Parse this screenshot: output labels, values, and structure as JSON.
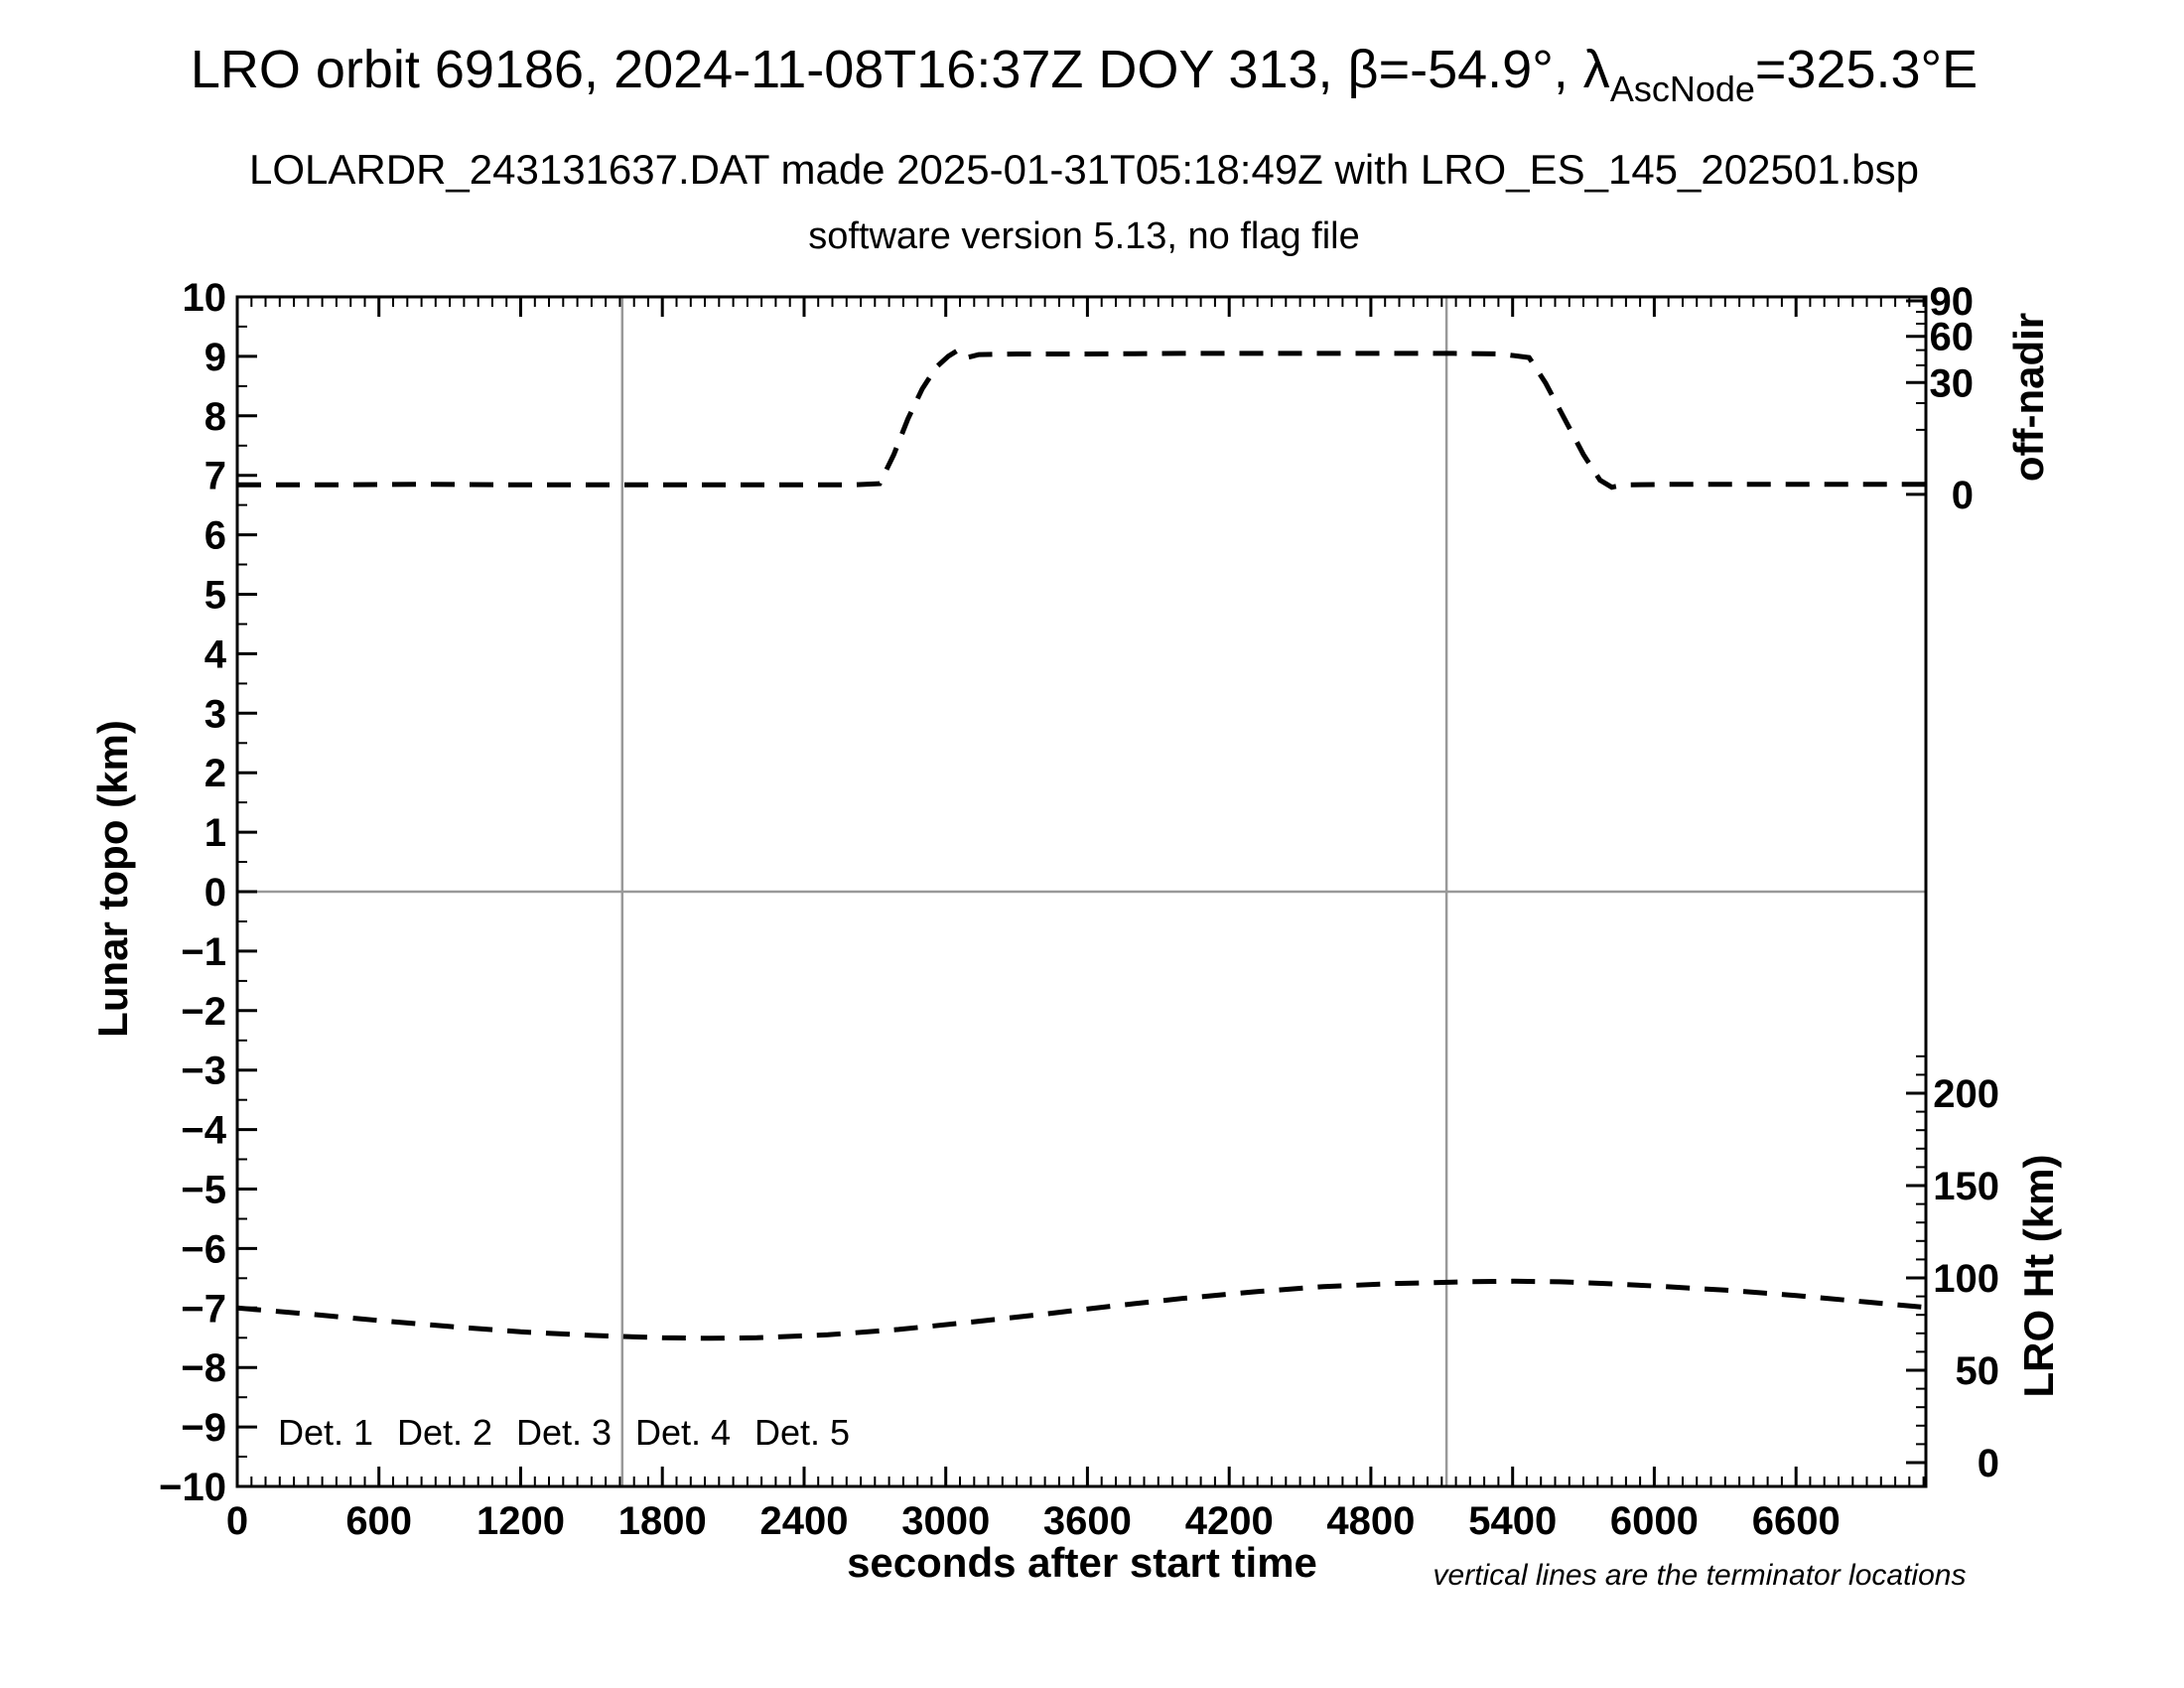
{
  "title": {
    "part1": "LRO orbit 69186, 2024-11-08T16:37Z DOY 313, β=-54.9°, λ",
    "sub": "AscNode",
    "part2": "=325.3°E"
  },
  "subtitle_file": "LOLARDR_243131637.DAT made 2025-01-31T05:18:49Z with LRO_ES_145_202501.bsp",
  "subtitle_version": "software version 5.13, no flag file",
  "footnote": "vertical lines are the terminator locations",
  "chart_data": {
    "type": "line",
    "title": "LRO orbit 69186, 2024-11-08T16:37Z DOY 313, β=-54.9°, λAscNode=325.3°E",
    "xlabel": "seconds after start time",
    "ylabel_left": "Lunar topo (km)",
    "ylabel_right_top": "off-nadir",
    "ylabel_right_bottom": "LRO Ht (km)",
    "grid": false,
    "x_axis": {
      "min": 0,
      "max": 7150,
      "major_step": 600,
      "minor_step": 60,
      "last_label": 6600,
      "tick_labels": [
        "0",
        "600",
        "1200",
        "1800",
        "2400",
        "3000",
        "3600",
        "4200",
        "4800",
        "5400",
        "6000",
        "6600"
      ]
    },
    "topo_axis": {
      "min": -10,
      "max": 10,
      "major_step": 1,
      "minor_step": 0.5,
      "tick_labels": [
        10,
        9,
        8,
        7,
        6,
        5,
        4,
        3,
        2,
        1,
        0,
        -1,
        -2,
        -3,
        -4,
        -5,
        -6,
        -7,
        -8,
        -9,
        -10
      ]
    },
    "off_nadir_axis": {
      "unit": "deg",
      "scale": "sqrt",
      "labeled_ticks": [
        90,
        60,
        30,
        0
      ],
      "minor_ticks": [
        10,
        20,
        40,
        50,
        70,
        80
      ],
      "topo_at_0deg": 6.68,
      "topo_per_sqrt_deg": 0.343
    },
    "lro_ht_axis": {
      "unit": "km",
      "labeled_ticks": [
        200,
        150,
        100,
        50,
        0
      ],
      "minor_step_km": 10,
      "minor_max_km": 220,
      "topo_at_0km": -9.6,
      "km_per_topo_unit": 32.2
    },
    "terminator_lines_sec": [
      1630,
      5120
    ],
    "zero_line_topo": 0,
    "legend_position": "bottom-left-inside",
    "legend": [
      {
        "label": "Det. 1",
        "color": "#000000"
      },
      {
        "label": "Det. 2",
        "color": "#0000ff"
      },
      {
        "label": "Det. 3",
        "color": "#00dd00"
      },
      {
        "label": "Det. 4",
        "color": "#ffa500"
      },
      {
        "label": "Det. 5",
        "color": "#ff0000"
      }
    ],
    "colors": {
      "line": "#000000",
      "gridline": "#999999",
      "frame": "#000000"
    },
    "series": [
      {
        "name": "off-nadir angle",
        "axis": "off_nadir_right_top",
        "color": "#000000",
        "style": "dashed",
        "summary": "≈0° off-nadir until ~2710 s, slews up to ≈48° by ~3120 s, holds, slews back down between ~5450 and ~5830 s, ≈0° to end of pass",
        "points_sec_topo": [
          [
            0,
            6.84
          ],
          [
            400,
            6.84
          ],
          [
            800,
            6.85
          ],
          [
            1200,
            6.84
          ],
          [
            1600,
            6.84
          ],
          [
            2000,
            6.84
          ],
          [
            2300,
            6.84
          ],
          [
            2600,
            6.84
          ],
          [
            2720,
            6.86
          ],
          [
            2780,
            7.35
          ],
          [
            2840,
            7.95
          ],
          [
            2900,
            8.45
          ],
          [
            2960,
            8.82
          ],
          [
            3010,
            9.0
          ],
          [
            3050,
            9.1
          ],
          [
            3090,
            8.98
          ],
          [
            3140,
            9.03
          ],
          [
            3300,
            9.04
          ],
          [
            3600,
            9.04
          ],
          [
            4000,
            9.05
          ],
          [
            4400,
            9.05
          ],
          [
            4800,
            9.05
          ],
          [
            5150,
            9.05
          ],
          [
            5350,
            9.04
          ],
          [
            5470,
            8.98
          ],
          [
            5540,
            8.55
          ],
          [
            5620,
            7.95
          ],
          [
            5700,
            7.35
          ],
          [
            5770,
            6.92
          ],
          [
            5820,
            6.8
          ],
          [
            5870,
            6.84
          ],
          [
            6100,
            6.85
          ],
          [
            6400,
            6.85
          ],
          [
            6700,
            6.85
          ],
          [
            7000,
            6.85
          ],
          [
            7150,
            6.85
          ]
        ]
      },
      {
        "name": "LRO height",
        "axis": "lro_ht_right_bottom",
        "color": "#000000",
        "style": "dashed",
        "summary": "≈84 km at start, minimum ≈68 km near 1840 s, maximum ≈97 km near 5300 s, ≈85 km at end",
        "points_sec_topo": [
          [
            0,
            -7.0
          ],
          [
            300,
            -7.1
          ],
          [
            600,
            -7.21
          ],
          [
            900,
            -7.31
          ],
          [
            1200,
            -7.4
          ],
          [
            1500,
            -7.46
          ],
          [
            1800,
            -7.5
          ],
          [
            2000,
            -7.51
          ],
          [
            2200,
            -7.5
          ],
          [
            2500,
            -7.45
          ],
          [
            2800,
            -7.36
          ],
          [
            3100,
            -7.24
          ],
          [
            3400,
            -7.11
          ],
          [
            3700,
            -6.97
          ],
          [
            4000,
            -6.84
          ],
          [
            4300,
            -6.73
          ],
          [
            4600,
            -6.64
          ],
          [
            4900,
            -6.59
          ],
          [
            5200,
            -6.56
          ],
          [
            5400,
            -6.55
          ],
          [
            5600,
            -6.56
          ],
          [
            5800,
            -6.59
          ],
          [
            6000,
            -6.63
          ],
          [
            6300,
            -6.7
          ],
          [
            6600,
            -6.79
          ],
          [
            6900,
            -6.9
          ],
          [
            7150,
            -6.99
          ]
        ]
      }
    ]
  }
}
